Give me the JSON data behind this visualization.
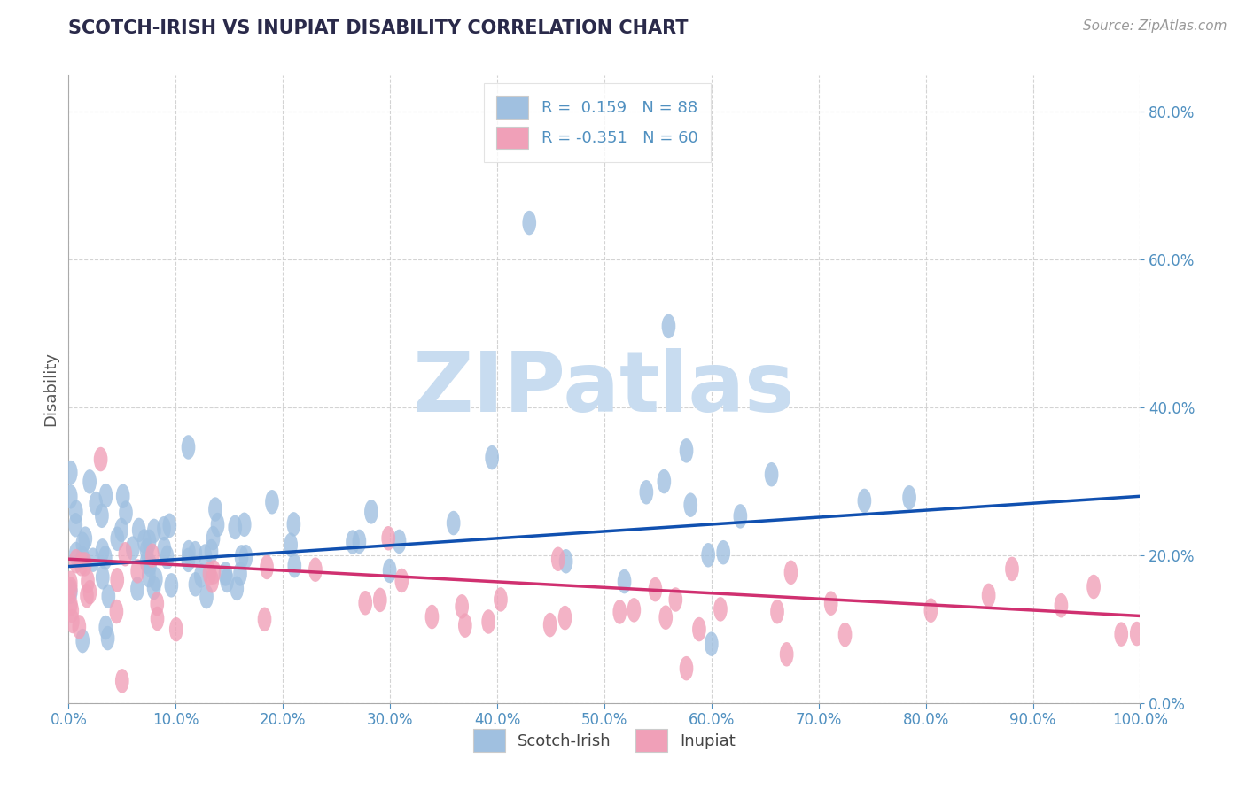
{
  "title": "SCOTCH-IRISH VS INUPIAT DISABILITY CORRELATION CHART",
  "source": "Source: ZipAtlas.com",
  "ylabel": "Disability",
  "blue_R": 0.159,
  "blue_N": 88,
  "pink_R": -0.351,
  "pink_N": 60,
  "blue_color": "#A0C0E0",
  "pink_color": "#F0A0B8",
  "blue_line_color": "#1050B0",
  "pink_line_color": "#D03070",
  "title_color": "#2A2A4A",
  "axis_tick_color": "#5090C0",
  "watermark_color": "#C8DCF0",
  "background_color": "#FFFFFF",
  "xlim": [
    0.0,
    1.0
  ],
  "ylim": [
    0.0,
    0.85
  ],
  "xticks": [
    0.0,
    0.1,
    0.2,
    0.3,
    0.4,
    0.5,
    0.6,
    0.7,
    0.8,
    0.9,
    1.0
  ],
  "yticks": [
    0.0,
    0.2,
    0.4,
    0.6,
    0.8
  ],
  "blue_trend_x": [
    0.0,
    1.0
  ],
  "blue_trend_y": [
    0.185,
    0.28
  ],
  "pink_trend_x": [
    0.0,
    1.0
  ],
  "pink_trend_y": [
    0.195,
    0.118
  ],
  "seed": 12345,
  "title_fontsize": 15,
  "source_fontsize": 11,
  "tick_fontsize": 12
}
